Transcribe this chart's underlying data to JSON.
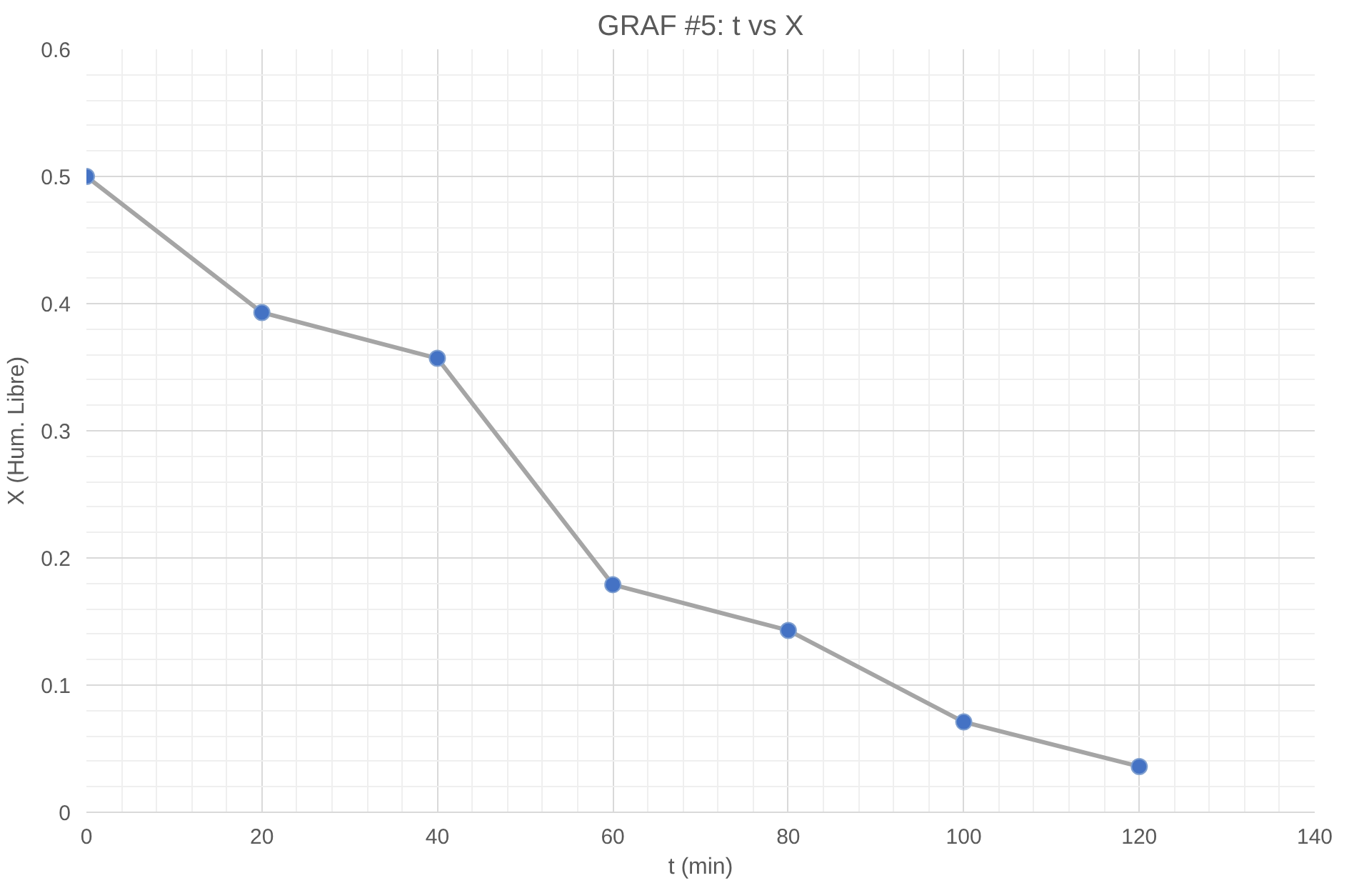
{
  "chart_data": {
    "type": "line",
    "title": "GRAF #5: t vs X",
    "xlabel": "t (min)",
    "ylabel": "X (Hum. Libre)",
    "x": [
      0,
      20,
      40,
      60,
      80,
      100,
      120
    ],
    "series": [
      {
        "color": "#a5a5a5",
        "colors": [
          "#4472c4",
          "#4472c4",
          "#4472c4",
          "#4472c4",
          "#4472c4",
          "#4472c4",
          "#4472c4"
        ],
        "values": [
          0.5,
          0.393,
          0.357,
          0.179,
          0.143,
          0.071,
          0.036
        ]
      }
    ],
    "xlim": [
      0,
      140
    ],
    "xticks": [
      0,
      20,
      40,
      60,
      80,
      100,
      120,
      140
    ],
    "ylim": [
      0,
      0.6
    ],
    "yticks": [
      0,
      0.1,
      0.2,
      0.3,
      0.4,
      0.5,
      0.6
    ],
    "grid": true,
    "marker": "circle",
    "line_style": "solid"
  }
}
